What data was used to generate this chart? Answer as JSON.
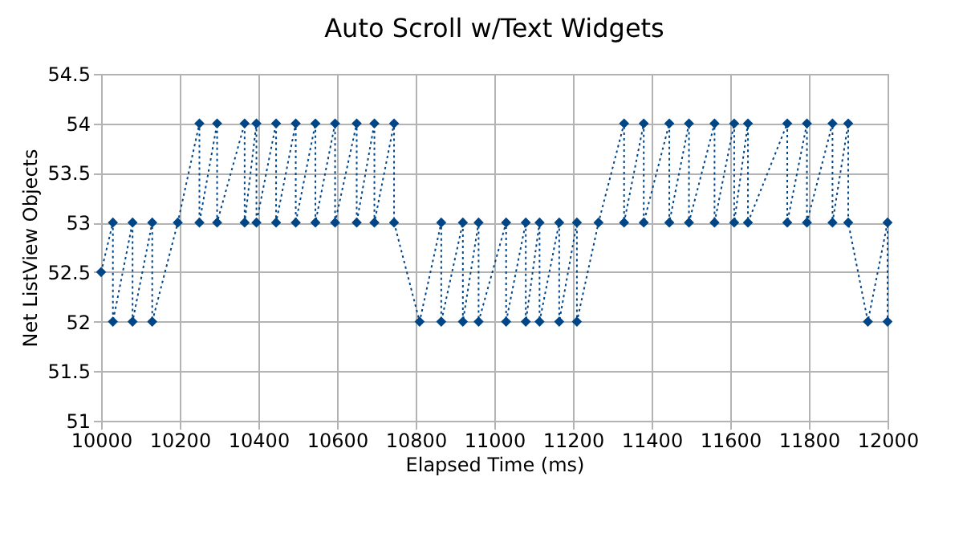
{
  "chart_data": {
    "type": "line",
    "title": "Auto Scroll w/Text Widgets",
    "xlabel": "Elapsed Time (ms)",
    "ylabel": "Net ListView Objects",
    "x": [
      10000,
      10030,
      10030,
      10080,
      10080,
      10130,
      10130,
      10195,
      10250,
      10250,
      10295,
      10295,
      10365,
      10365,
      10395,
      10395,
      10445,
      10445,
      10495,
      10495,
      10545,
      10545,
      10595,
      10595,
      10650,
      10650,
      10695,
      10695,
      10745,
      10745,
      10810,
      10865,
      10865,
      10920,
      10920,
      10960,
      10960,
      11030,
      11030,
      11080,
      11080,
      11115,
      11115,
      11165,
      11165,
      11210,
      11210,
      11265,
      11330,
      11330,
      11380,
      11380,
      11445,
      11445,
      11495,
      11495,
      11560,
      11560,
      11610,
      11610,
      11645,
      11645,
      11745,
      11745,
      11795,
      11795,
      11860,
      11860,
      11900,
      11900,
      11950,
      12000,
      12000
    ],
    "series": [
      {
        "color": "#004586",
        "values": [
          52.5,
          53,
          52,
          53,
          52,
          53,
          52,
          53,
          54,
          53,
          54,
          53,
          54,
          53,
          54,
          53,
          54,
          53,
          54,
          53,
          54,
          53,
          54,
          53,
          54,
          53,
          54,
          53,
          54,
          53,
          52,
          53,
          52,
          53,
          52,
          53,
          52,
          53,
          52,
          53,
          52,
          53,
          52,
          53,
          52,
          53,
          52,
          53,
          54,
          53,
          54,
          53,
          54,
          53,
          54,
          53,
          54,
          53,
          54,
          53,
          54,
          53,
          54,
          53,
          54,
          53,
          54,
          53,
          54,
          53,
          52,
          53,
          52
        ]
      }
    ],
    "xlim": [
      10000,
      12000
    ],
    "xticks": [
      10000,
      10200,
      10400,
      10600,
      10800,
      11000,
      11200,
      11400,
      11600,
      11800,
      12000
    ],
    "ylim": [
      51,
      54.5
    ],
    "yticks": [
      51,
      51.5,
      52,
      52.5,
      53,
      53.5,
      54,
      54.5
    ],
    "grid": true,
    "marker": "diamond",
    "line_style": "dotted"
  }
}
